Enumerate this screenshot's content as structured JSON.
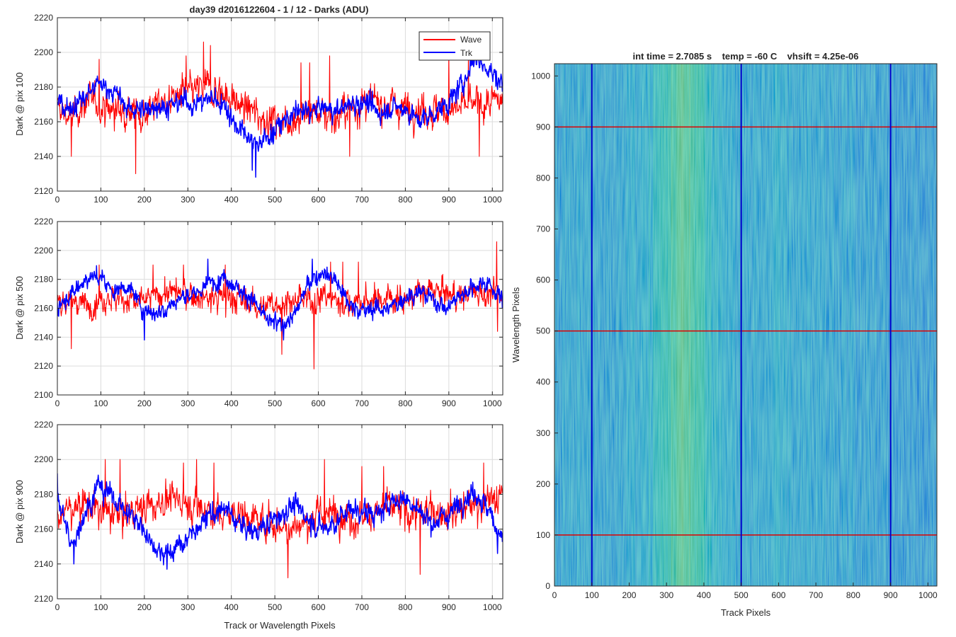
{
  "figure": {
    "title": "day39 d2016122604 - 1 / 12 - Darks (ADU)",
    "shared_xlabel": "Track or Wavelength Pixels"
  },
  "chart_data": [
    {
      "type": "line",
      "id": "dark-pix-100",
      "title": "day39 d2016122604 - 1 / 12 - Darks (ADU)",
      "xlabel": "",
      "ylabel": "Dark @ pix 100",
      "xlim": [
        0,
        1024
      ],
      "ylim": [
        2120,
        2220
      ],
      "xticks": [
        0,
        100,
        200,
        300,
        400,
        500,
        600,
        700,
        800,
        900,
        1000
      ],
      "yticks": [
        2120,
        2140,
        2160,
        2180,
        2200,
        2220
      ],
      "grid": true,
      "legend": {
        "position": "top-right",
        "entries": [
          "Wave",
          "Trk"
        ]
      },
      "series": [
        {
          "name": "Wave",
          "color": "#ff0000",
          "x": [
            0,
            32,
            64,
            96,
            128,
            160,
            192,
            224,
            256,
            288,
            320,
            352,
            384,
            416,
            448,
            480,
            512,
            544,
            576,
            608,
            640,
            672,
            704,
            736,
            768,
            800,
            832,
            864,
            896,
            928,
            960,
            992,
            1023
          ],
          "y": [
            2168,
            2162,
            2172,
            2170,
            2166,
            2168,
            2164,
            2170,
            2172,
            2176,
            2178,
            2180,
            2176,
            2170,
            2166,
            2162,
            2160,
            2162,
            2165,
            2166,
            2162,
            2168,
            2170,
            2172,
            2170,
            2168,
            2168,
            2166,
            2167,
            2168,
            2170,
            2170,
            2172
          ],
          "spread": 8,
          "spikes": [
            [
              32,
              2140
            ],
            [
              96,
              2196
            ],
            [
              180,
              2130
            ],
            [
              296,
              2198
            ],
            [
              336,
              2206
            ],
            [
              352,
              2204
            ],
            [
              560,
              2194
            ],
            [
              580,
              2194
            ],
            [
              626,
              2198
            ],
            [
              672,
              2140
            ],
            [
              900,
              2200
            ],
            [
              945,
              2200
            ],
            [
              970,
              2140
            ]
          ]
        },
        {
          "name": "Trk",
          "color": "#0000ff",
          "x": [
            0,
            32,
            64,
            96,
            128,
            160,
            192,
            224,
            256,
            288,
            320,
            352,
            384,
            416,
            448,
            480,
            512,
            544,
            576,
            608,
            640,
            672,
            704,
            736,
            768,
            800,
            832,
            864,
            896,
            928,
            960,
            992,
            1023
          ],
          "y": [
            2172,
            2168,
            2174,
            2182,
            2178,
            2168,
            2166,
            2170,
            2168,
            2172,
            2170,
            2174,
            2170,
            2156,
            2148,
            2150,
            2158,
            2165,
            2166,
            2168,
            2166,
            2170,
            2172,
            2165,
            2168,
            2168,
            2160,
            2165,
            2170,
            2180,
            2198,
            2190,
            2182
          ],
          "spread": 5,
          "spikes": [
            [
              448,
              2132
            ],
            [
              456,
              2128
            ],
            [
              950,
              2204
            ]
          ]
        }
      ]
    },
    {
      "type": "line",
      "id": "dark-pix-500",
      "title": "",
      "xlabel": "",
      "ylabel": "Dark @ pix 500",
      "xlim": [
        0,
        1024
      ],
      "ylim": [
        2100,
        2220
      ],
      "xticks": [
        0,
        100,
        200,
        300,
        400,
        500,
        600,
        700,
        800,
        900,
        1000
      ],
      "yticks": [
        2100,
        2120,
        2140,
        2160,
        2180,
        2200,
        2220
      ],
      "grid": true,
      "series": [
        {
          "name": "Wave",
          "color": "#ff0000",
          "x": [
            0,
            32,
            64,
            96,
            128,
            160,
            192,
            224,
            256,
            288,
            320,
            352,
            384,
            416,
            448,
            480,
            512,
            544,
            576,
            608,
            640,
            672,
            704,
            736,
            768,
            800,
            832,
            864,
            896,
            928,
            960,
            992,
            1023
          ],
          "y": [
            2164,
            2166,
            2162,
            2166,
            2168,
            2166,
            2164,
            2168,
            2172,
            2170,
            2168,
            2166,
            2168,
            2166,
            2164,
            2160,
            2165,
            2164,
            2166,
            2168,
            2166,
            2163,
            2164,
            2166,
            2168,
            2166,
            2170,
            2172,
            2170,
            2168,
            2172,
            2170,
            2168
          ],
          "spread": 8,
          "spikes": [
            [
              32,
              2132
            ],
            [
              96,
              2190
            ],
            [
              220,
              2190
            ],
            [
              290,
              2190
            ],
            [
              386,
              2190
            ],
            [
              516,
              2128
            ],
            [
              590,
              2118
            ],
            [
              628,
              2192
            ],
            [
              656,
              2192
            ],
            [
              692,
              2192
            ],
            [
              1010,
              2206
            ],
            [
              1012,
              2144
            ]
          ]
        },
        {
          "name": "Trk",
          "color": "#0000ff",
          "x": [
            0,
            32,
            64,
            96,
            128,
            160,
            192,
            224,
            256,
            288,
            320,
            352,
            384,
            416,
            448,
            480,
            512,
            544,
            576,
            608,
            640,
            672,
            704,
            736,
            768,
            800,
            832,
            864,
            896,
            928,
            960,
            992,
            1023
          ],
          "y": [
            2162,
            2170,
            2180,
            2182,
            2172,
            2176,
            2162,
            2156,
            2162,
            2168,
            2170,
            2178,
            2182,
            2174,
            2166,
            2152,
            2148,
            2155,
            2176,
            2186,
            2180,
            2162,
            2158,
            2160,
            2160,
            2168,
            2172,
            2166,
            2160,
            2170,
            2176,
            2178,
            2165
          ],
          "spread": 5,
          "spikes": [
            [
              200,
              2138
            ],
            [
              346,
              2194
            ],
            [
              520,
              2138
            ],
            [
              586,
              2194
            ]
          ]
        }
      ]
    },
    {
      "type": "line",
      "id": "dark-pix-900",
      "title": "",
      "xlabel": "Track or Wavelength Pixels",
      "ylabel": "Dark @ pix 900",
      "xlim": [
        0,
        1024
      ],
      "ylim": [
        2120,
        2220
      ],
      "xticks": [
        0,
        100,
        200,
        300,
        400,
        500,
        600,
        700,
        800,
        900,
        1000
      ],
      "yticks": [
        2120,
        2140,
        2160,
        2180,
        2200,
        2220
      ],
      "grid": true,
      "series": [
        {
          "name": "Wave",
          "color": "#ff0000",
          "x": [
            0,
            32,
            64,
            96,
            128,
            160,
            192,
            224,
            256,
            288,
            320,
            352,
            384,
            416,
            448,
            480,
            512,
            544,
            576,
            608,
            640,
            672,
            704,
            736,
            768,
            800,
            832,
            864,
            896,
            928,
            960,
            992,
            1023
          ],
          "y": [
            2168,
            2172,
            2176,
            2170,
            2168,
            2170,
            2172,
            2174,
            2178,
            2176,
            2174,
            2170,
            2168,
            2170,
            2166,
            2164,
            2162,
            2162,
            2164,
            2168,
            2170,
            2166,
            2168,
            2170,
            2172,
            2170,
            2168,
            2172,
            2170,
            2172,
            2174,
            2176,
            2178
          ],
          "spread": 8,
          "spikes": [
            [
              110,
              2200
            ],
            [
              144,
              2200
            ],
            [
              290,
              2198
            ],
            [
              320,
              2200
            ],
            [
              360,
              2198
            ],
            [
              530,
              2132
            ],
            [
              614,
              2200
            ],
            [
              700,
              2196
            ],
            [
              750,
              2196
            ],
            [
              834,
              2134
            ],
            [
              980,
              2198
            ]
          ]
        },
        {
          "name": "Trk",
          "color": "#0000ff",
          "x": [
            0,
            32,
            64,
            96,
            128,
            160,
            192,
            224,
            256,
            288,
            320,
            352,
            384,
            416,
            448,
            480,
            512,
            544,
            576,
            608,
            640,
            672,
            704,
            736,
            768,
            800,
            832,
            864,
            896,
            928,
            960,
            992,
            1023
          ],
          "y": [
            2180,
            2150,
            2170,
            2186,
            2178,
            2170,
            2162,
            2150,
            2146,
            2152,
            2160,
            2168,
            2172,
            2164,
            2158,
            2162,
            2168,
            2174,
            2166,
            2160,
            2164,
            2172,
            2170,
            2168,
            2176,
            2178,
            2170,
            2164,
            2168,
            2176,
            2182,
            2170,
            2155
          ],
          "spread": 5,
          "spikes": [
            [
              0,
              2192
            ],
            [
              38,
              2140
            ],
            [
              252,
              2137
            ],
            [
              1012,
              2146
            ]
          ]
        }
      ]
    },
    {
      "type": "heatmap",
      "id": "dark-image",
      "title": "int time = 2.7085 s    temp = -60 C    vhsift = 4.25e-06",
      "xlabel": "Track Pixels",
      "ylabel": "Wavelength Pixels",
      "xlim": [
        0,
        1024
      ],
      "ylim": [
        0,
        1024
      ],
      "xticks": [
        0,
        100,
        200,
        300,
        400,
        500,
        600,
        700,
        800,
        900,
        1000
      ],
      "yticks": [
        0,
        100,
        200,
        300,
        400,
        500,
        600,
        700,
        800,
        900,
        1000
      ],
      "colormap": "parula",
      "column_profile": [
        [
          0,
          0.4
        ],
        [
          50,
          0.45
        ],
        [
          150,
          0.42
        ],
        [
          250,
          0.5
        ],
        [
          300,
          0.62
        ],
        [
          330,
          0.7
        ],
        [
          380,
          0.66
        ],
        [
          430,
          0.52
        ],
        [
          500,
          0.44
        ],
        [
          600,
          0.47
        ],
        [
          700,
          0.43
        ],
        [
          800,
          0.42
        ],
        [
          900,
          0.38
        ],
        [
          1024,
          0.36
        ]
      ],
      "marker_lines": {
        "vertical": {
          "color": "#0000cc",
          "x": [
            100,
            500,
            900
          ]
        },
        "horizontal": {
          "color": "#dd0000",
          "y": [
            100,
            500,
            900
          ]
        }
      }
    }
  ]
}
